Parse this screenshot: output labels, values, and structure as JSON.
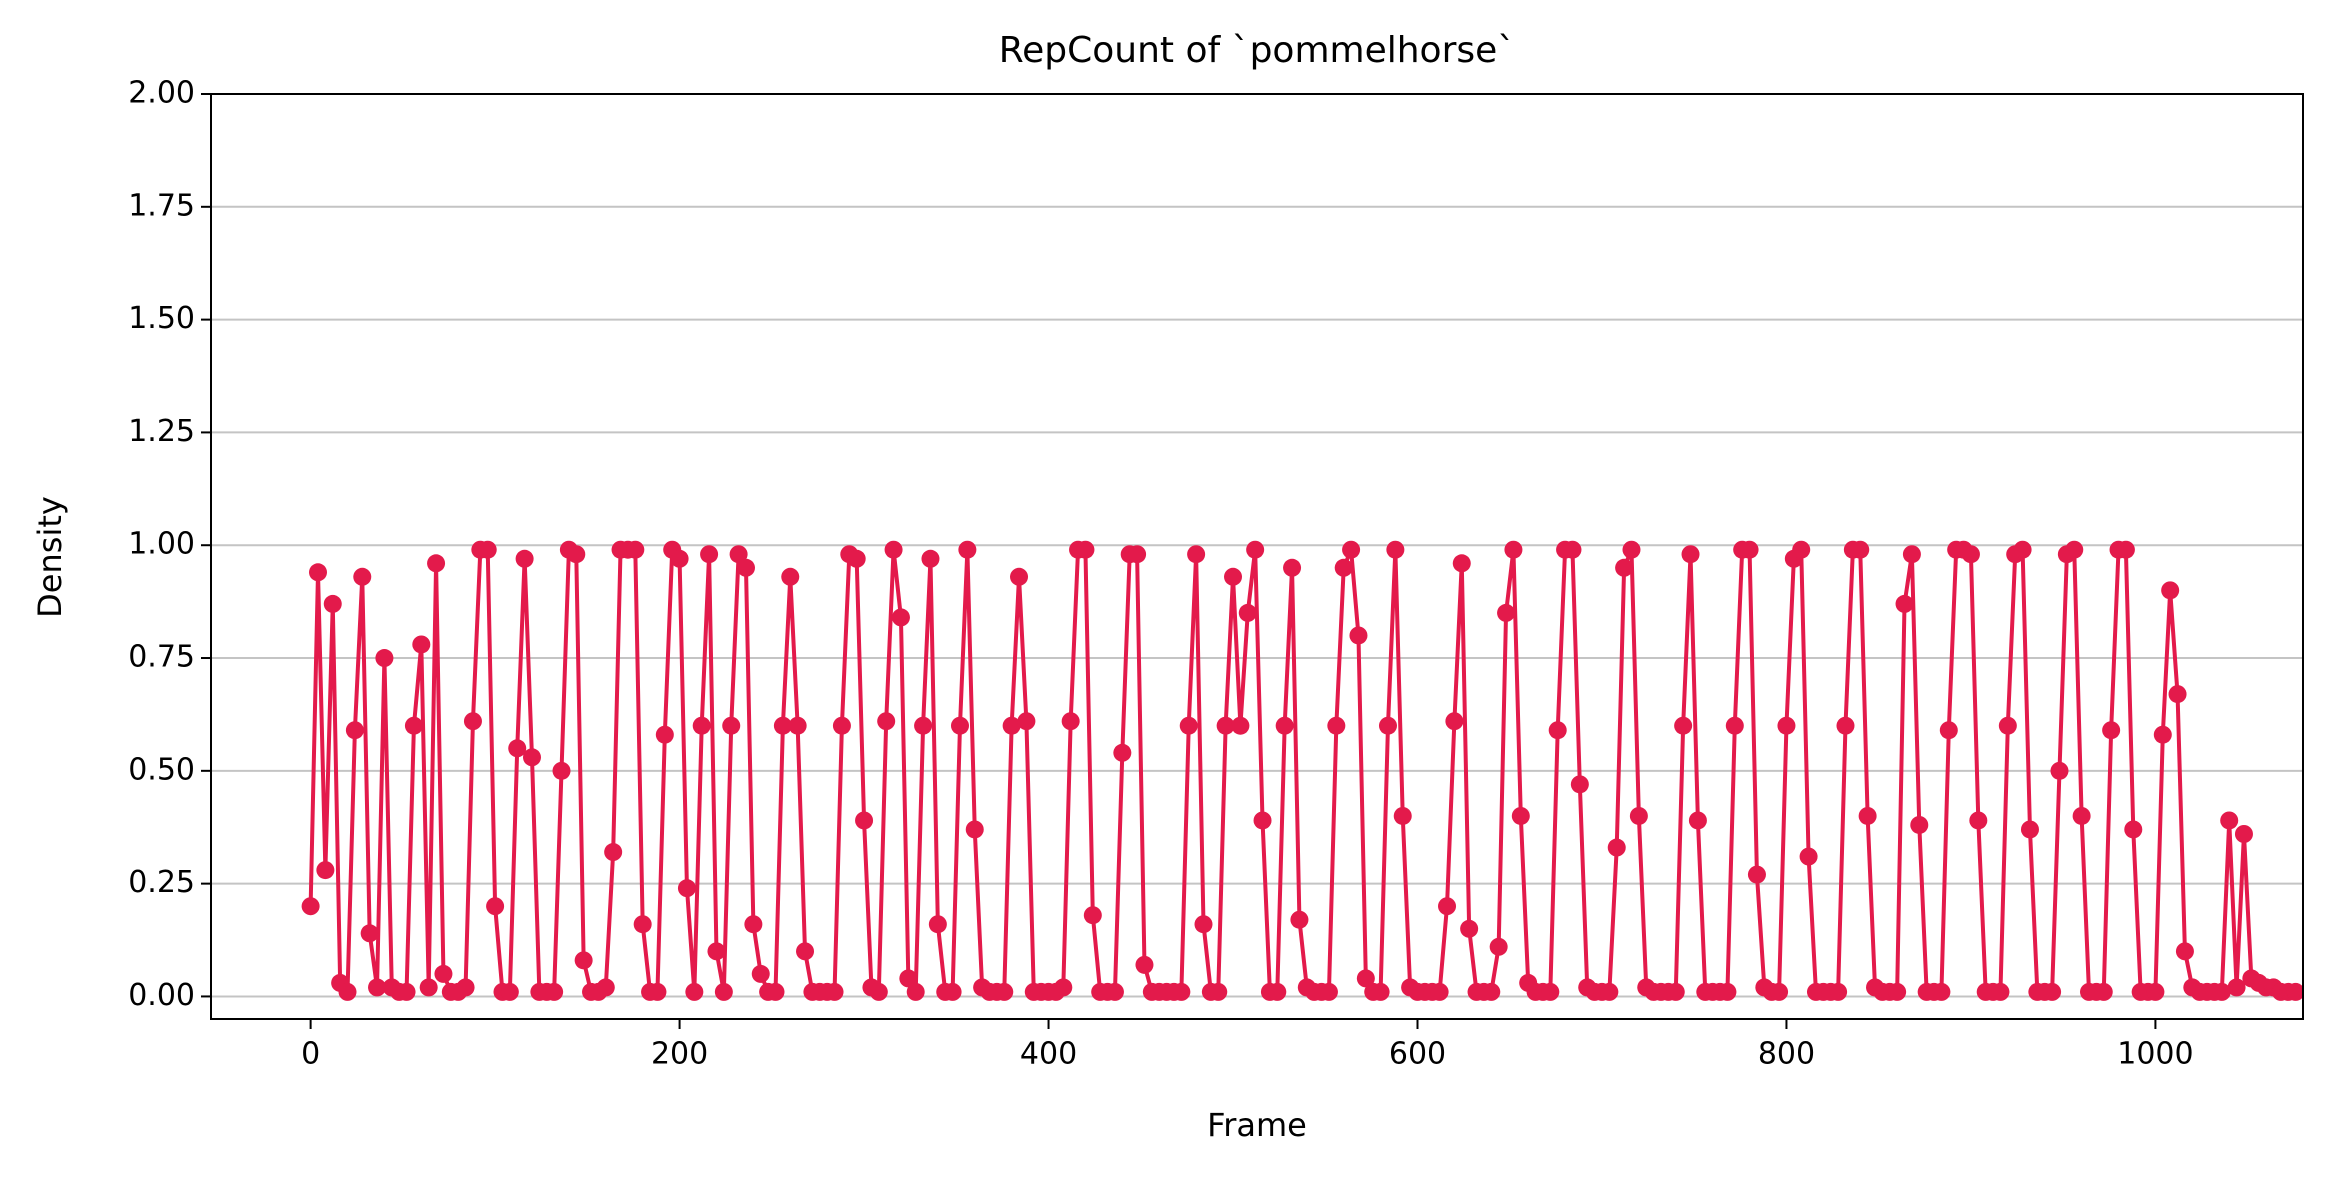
{
  "chart_data": {
    "type": "line",
    "title": "RepCount of `pommelhorse`",
    "x_label": "Frame",
    "y_label": "Density",
    "color": "#e31a4b",
    "grid": true,
    "xlim": [
      -54,
      1080
    ],
    "ylim": [
      -0.05,
      2.0
    ],
    "xticks": [
      0,
      200,
      400,
      600,
      800,
      1000
    ],
    "yticks": [
      {
        "value": 0,
        "label": "0.00"
      },
      {
        "value": 0.25,
        "label": "0.25"
      },
      {
        "value": 0.5,
        "label": "0.50"
      },
      {
        "value": 0.75,
        "label": "0.75"
      },
      {
        "value": 1,
        "label": "1.00"
      },
      {
        "value": 1.25,
        "label": "1.25"
      },
      {
        "value": 1.5,
        "label": "1.50"
      },
      {
        "value": 1.75,
        "label": "1.75"
      },
      {
        "value": 2,
        "label": "2.00"
      }
    ],
    "x": [
      0,
      4,
      8,
      12,
      16,
      20,
      24,
      28,
      32,
      36,
      40,
      44,
      48,
      52,
      56,
      60,
      64,
      68,
      72,
      76,
      80,
      84,
      88,
      92,
      96,
      100,
      104,
      108,
      112,
      116,
      120,
      124,
      128,
      132,
      136,
      140,
      144,
      148,
      152,
      156,
      160,
      164,
      168,
      172,
      176,
      180,
      184,
      188,
      192,
      196,
      200,
      204,
      208,
      212,
      216,
      220,
      224,
      228,
      232,
      236,
      240,
      244,
      248,
      252,
      256,
      260,
      264,
      268,
      272,
      276,
      280,
      284,
      288,
      292,
      296,
      300,
      304,
      308,
      312,
      316,
      320,
      324,
      328,
      332,
      336,
      340,
      344,
      348,
      352,
      356,
      360,
      364,
      368,
      372,
      376,
      380,
      384,
      388,
      392,
      396,
      400,
      404,
      408,
      412,
      416,
      420,
      424,
      428,
      432,
      436,
      440,
      444,
      448,
      452,
      456,
      460,
      464,
      468,
      472,
      476,
      480,
      484,
      488,
      492,
      496,
      500,
      504,
      508,
      512,
      516,
      520,
      524,
      528,
      532,
      536,
      540,
      544,
      548,
      552,
      556,
      560,
      564,
      568,
      572,
      576,
      580,
      584,
      588,
      592,
      596,
      600,
      604,
      608,
      612,
      616,
      620,
      624,
      628,
      632,
      636,
      640,
      644,
      648,
      652,
      656,
      660,
      664,
      668,
      672,
      676,
      680,
      684,
      688,
      692,
      696,
      700,
      704,
      708,
      712,
      716,
      720,
      724,
      728,
      732,
      736,
      740,
      744,
      748,
      752,
      756,
      760,
      764,
      768,
      772,
      776,
      780,
      784,
      788,
      792,
      796,
      800,
      804,
      808,
      812,
      816,
      820,
      824,
      828,
      832,
      836,
      840,
      844,
      848,
      852,
      856,
      860,
      864,
      868,
      872,
      876,
      880,
      884,
      888,
      892,
      896,
      900,
      904,
      908,
      912,
      916,
      920,
      924,
      928,
      932,
      936,
      940,
      944,
      948,
      952,
      956,
      960,
      964,
      968,
      972,
      976,
      980,
      984,
      988,
      992,
      996,
      1000,
      1004,
      1008,
      1012,
      1016,
      1020,
      1024,
      1028,
      1032,
      1036,
      1040,
      1044,
      1048,
      1052,
      1056,
      1060,
      1064,
      1068,
      1072,
      1076
    ],
    "values": [
      0.2,
      0.94,
      0.28,
      0.87,
      0.03,
      0.01,
      0.59,
      0.93,
      0.14,
      0.02,
      0.75,
      0.02,
      0.01,
      0.01,
      0.6,
      0.78,
      0.02,
      0.96,
      0.05,
      0.01,
      0.01,
      0.02,
      0.61,
      0.99,
      0.99,
      0.2,
      0.01,
      0.01,
      0.55,
      0.97,
      0.53,
      0.01,
      0.01,
      0.01,
      0.5,
      0.99,
      0.98,
      0.08,
      0.01,
      0.01,
      0.02,
      0.32,
      0.99,
      0.99,
      0.99,
      0.16,
      0.01,
      0.01,
      0.58,
      0.99,
      0.97,
      0.24,
      0.01,
      0.6,
      0.98,
      0.1,
      0.01,
      0.6,
      0.98,
      0.95,
      0.16,
      0.05,
      0.01,
      0.01,
      0.6,
      0.93,
      0.6,
      0.1,
      0.01,
      0.01,
      0.01,
      0.01,
      0.6,
      0.98,
      0.97,
      0.39,
      0.02,
      0.01,
      0.61,
      0.99,
      0.84,
      0.04,
      0.01,
      0.6,
      0.97,
      0.16,
      0.01,
      0.01,
      0.6,
      0.99,
      0.37,
      0.02,
      0.01,
      0.01,
      0.01,
      0.6,
      0.93,
      0.61,
      0.01,
      0.01,
      0.01,
      0.01,
      0.02,
      0.61,
      0.99,
      0.99,
      0.18,
      0.01,
      0.01,
      0.01,
      0.54,
      0.98,
      0.98,
      0.07,
      0.01,
      0.01,
      0.01,
      0.01,
      0.01,
      0.6,
      0.98,
      0.16,
      0.01,
      0.01,
      0.6,
      0.93,
      0.6,
      0.85,
      0.99,
      0.39,
      0.01,
      0.01,
      0.6,
      0.95,
      0.17,
      0.02,
      0.01,
      0.01,
      0.01,
      0.6,
      0.95,
      0.99,
      0.8,
      0.04,
      0.01,
      0.01,
      0.6,
      0.99,
      0.4,
      0.02,
      0.01,
      0.01,
      0.01,
      0.01,
      0.2,
      0.61,
      0.96,
      0.15,
      0.01,
      0.01,
      0.01,
      0.11,
      0.85,
      0.99,
      0.4,
      0.03,
      0.01,
      0.01,
      0.01,
      0.59,
      0.99,
      0.99,
      0.47,
      0.02,
      0.01,
      0.01,
      0.01,
      0.33,
      0.95,
      0.99,
      0.4,
      0.02,
      0.01,
      0.01,
      0.01,
      0.01,
      0.6,
      0.98,
      0.39,
      0.01,
      0.01,
      0.01,
      0.01,
      0.6,
      0.99,
      0.99,
      0.27,
      0.02,
      0.01,
      0.01,
      0.6,
      0.97,
      0.99,
      0.31,
      0.01,
      0.01,
      0.01,
      0.01,
      0.6,
      0.99,
      0.99,
      0.4,
      0.02,
      0.01,
      0.01,
      0.01,
      0.87,
      0.98,
      0.38,
      0.01,
      0.01,
      0.01,
      0.59,
      0.99,
      0.99,
      0.98,
      0.39,
      0.01,
      0.01,
      0.01,
      0.6,
      0.98,
      0.99,
      0.37,
      0.01,
      0.01,
      0.01,
      0.5,
      0.98,
      0.99,
      0.4,
      0.01,
      0.01,
      0.01,
      0.59,
      0.99,
      0.99,
      0.37,
      0.01,
      0.01,
      0.01,
      0.58,
      0.9,
      0.67,
      0.1,
      0.02,
      0.01,
      0.01,
      0.01,
      0.01,
      0.39,
      0.02,
      0.36,
      0.04,
      0.03,
      0.02,
      0.02,
      0.01,
      0.01,
      0.01
    ]
  }
}
